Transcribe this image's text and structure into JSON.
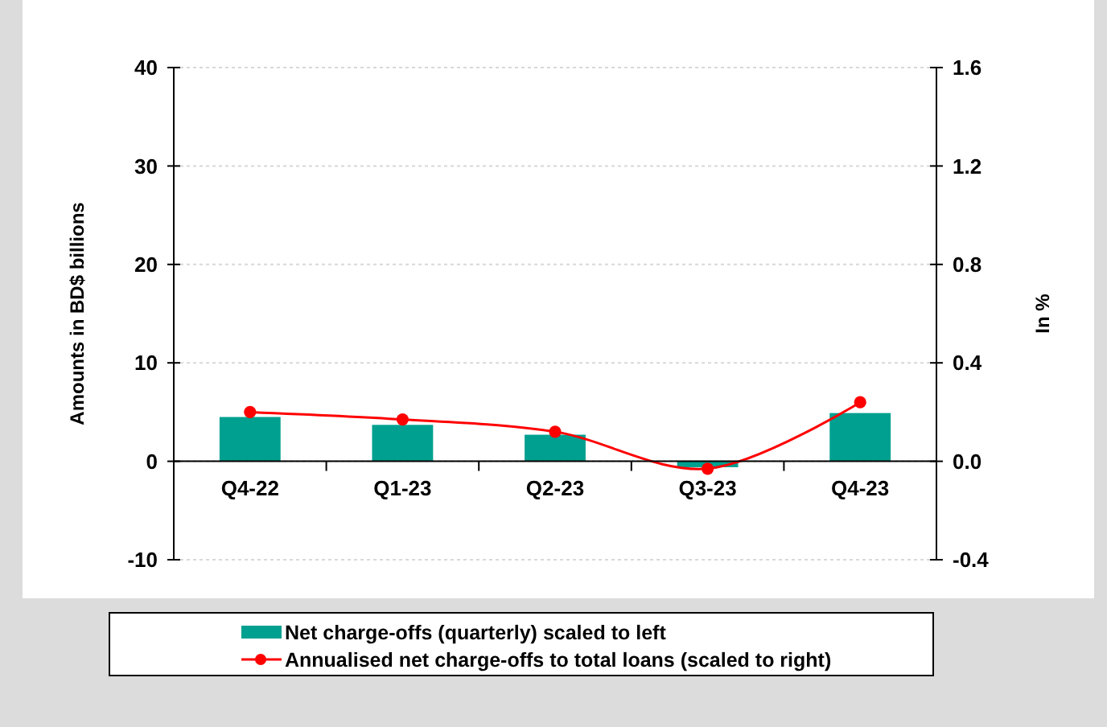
{
  "chart_data": {
    "type": "bar",
    "categories": [
      "Q4-22",
      "Q1-23",
      "Q2-23",
      "Q3-23",
      "Q4-23"
    ],
    "series": [
      {
        "name": "Net charge-offs (quarterly) scaled to left",
        "color": "#00a090",
        "values": [
          4.5,
          3.7,
          2.7,
          -0.6,
          4.9
        ]
      },
      {
        "name": "Annualised net charge-offs to total loans (scaled to right)",
        "type": "line",
        "axis": "y2",
        "color": "#ff0000",
        "marker": "circle",
        "values": [
          0.2,
          0.17,
          0.12,
          -0.03,
          0.24
        ]
      }
    ],
    "ylabel": "Amounts in BD$ billions",
    "y2label": "In %",
    "ylim": [
      -10,
      40
    ],
    "yticks": [
      -10,
      0,
      10,
      20,
      30,
      40
    ],
    "y2lim": [
      -0.4,
      1.6
    ],
    "y2ticks": [
      {
        "value": -0.4,
        "label": "-0.4"
      },
      {
        "value": 0,
        "label": "0.0"
      },
      {
        "value": 0.4,
        "label": "0.4"
      },
      {
        "value": 0.8,
        "label": "0.8"
      },
      {
        "value": 1.2,
        "label": "1.2"
      },
      {
        "value": 1.6,
        "label": "1.6"
      }
    ],
    "grid": "y",
    "legend": "bottom"
  }
}
